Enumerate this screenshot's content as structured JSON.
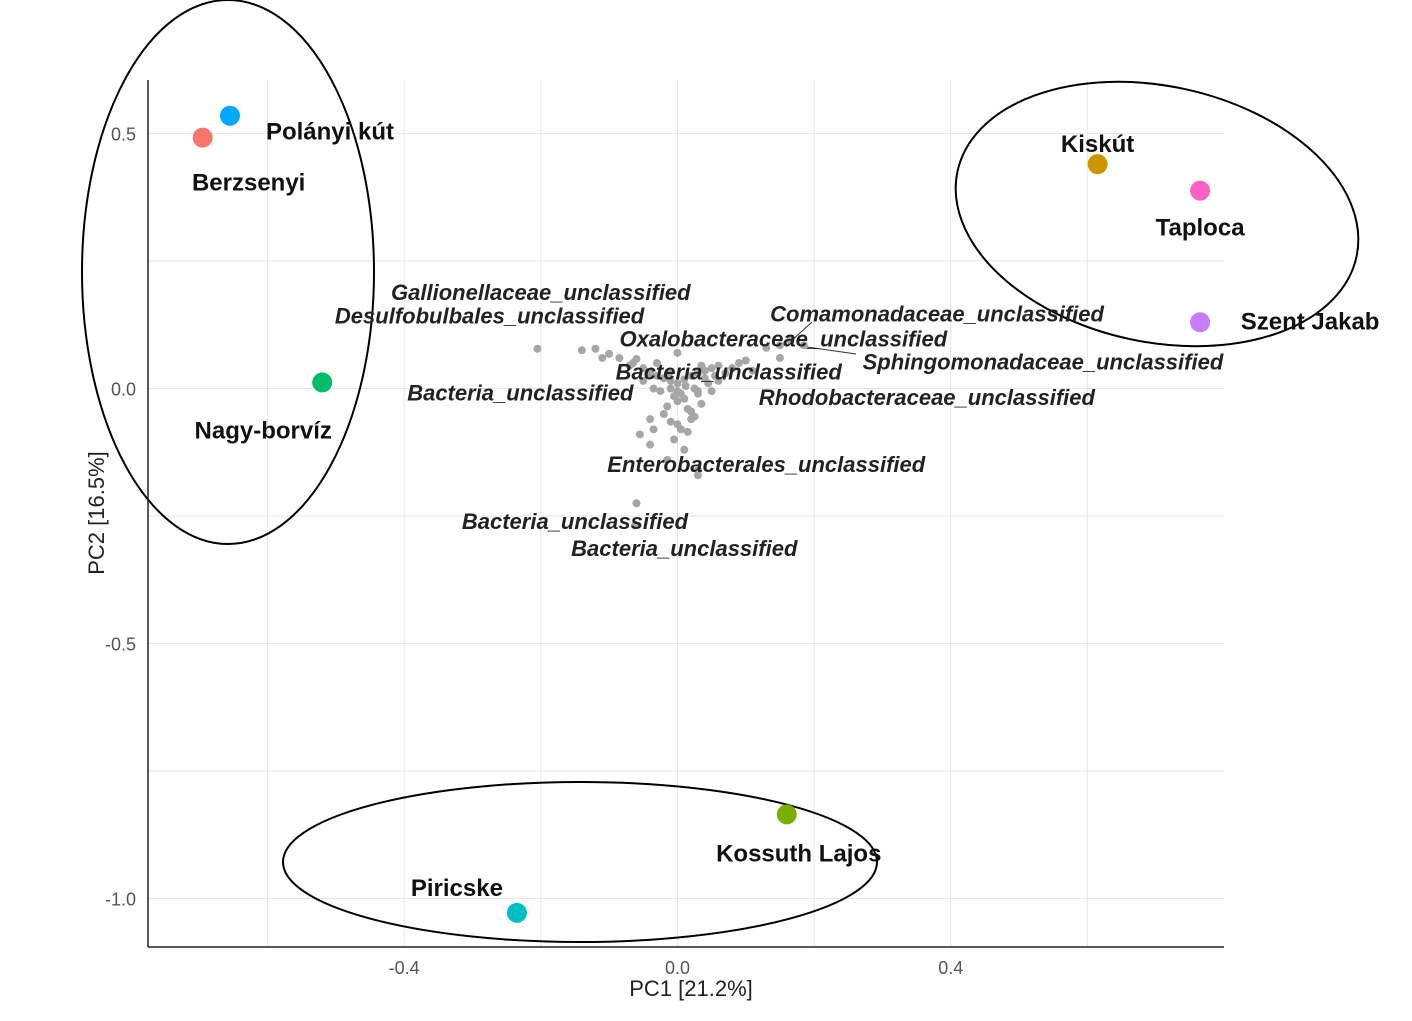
{
  "chart_data": {
    "type": "scatter",
    "title": "",
    "xlabel": "PC1 [21.2%]",
    "ylabel": "PC2 [16.5%]",
    "xlim": [
      -0.775,
      0.8
    ],
    "ylim": [
      -1.095,
      0.605
    ],
    "x_ticks": [
      {
        "value": -0.4,
        "label": "-0.4"
      },
      {
        "value": 0.0,
        "label": "0.0"
      },
      {
        "value": 0.4,
        "label": "0.4"
      }
    ],
    "y_ticks": [
      {
        "value": 0.5,
        "label": "0.5"
      },
      {
        "value": 0.0,
        "label": "0.0"
      },
      {
        "value": -0.5,
        "label": "-0.5"
      },
      {
        "value": -1.0,
        "label": "-1.0"
      }
    ],
    "x_minor_grid": [
      -0.6,
      -0.2,
      0.2,
      0.6
    ],
    "y_minor_grid": [
      0.25,
      -0.25,
      -0.75
    ],
    "grid": true,
    "sites": [
      {
        "name": "Polányi kút",
        "x": -0.655,
        "y": 0.535,
        "color": "#00a9ff"
      },
      {
        "name": "Berzsenyi",
        "x": -0.695,
        "y": 0.492,
        "color": "#f8766d"
      },
      {
        "name": "Nagy-borvíz",
        "x": -0.52,
        "y": 0.012,
        "color": "#00be67"
      },
      {
        "name": "Kiskút",
        "x": 0.615,
        "y": 0.44,
        "color": "#cd9600"
      },
      {
        "name": "Taploca",
        "x": 0.765,
        "y": 0.388,
        "color": "#ff61c3"
      },
      {
        "name": "Szent Jakab",
        "x": 0.765,
        "y": 0.13,
        "color": "#c77cff"
      },
      {
        "name": "Kossuth Lajos",
        "x": 0.16,
        "y": -0.835,
        "color": "#7cae00"
      },
      {
        "name": "Piricske",
        "x": -0.235,
        "y": -1.028,
        "color": "#00bfc4"
      }
    ],
    "taxa_points": [
      [
        -0.205,
        0.078
      ],
      [
        -0.14,
        0.075
      ],
      [
        -0.12,
        0.078
      ],
      [
        -0.1,
        0.068
      ],
      [
        -0.06,
        0.058
      ],
      [
        -0.07,
        0.045
      ],
      [
        -0.05,
        0.04
      ],
      [
        -0.04,
        0.03
      ],
      [
        -0.03,
        0.025
      ],
      [
        -0.02,
        0.02
      ],
      [
        -0.01,
        0.015
      ],
      [
        0.0,
        0.01
      ],
      [
        0.01,
        0.018
      ],
      [
        0.02,
        0.025
      ],
      [
        0.03,
        0.03
      ],
      [
        0.04,
        0.035
      ],
      [
        0.05,
        0.04
      ],
      [
        0.06,
        0.045
      ],
      [
        0.08,
        0.04
      ],
      [
        0.1,
        0.055
      ],
      [
        0.13,
        0.08
      ],
      [
        0.15,
        0.085
      ],
      [
        0.165,
        0.095
      ],
      [
        0.185,
        0.085
      ],
      [
        0.15,
        0.06
      ],
      [
        -0.01,
        0.0
      ],
      [
        0.0,
        -0.005
      ],
      [
        0.005,
        -0.01
      ],
      [
        -0.005,
        -0.015
      ],
      [
        0.01,
        -0.02
      ],
      [
        0.0,
        -0.025
      ],
      [
        -0.015,
        -0.035
      ],
      [
        0.015,
        -0.04
      ],
      [
        0.02,
        -0.045
      ],
      [
        0.025,
        -0.055
      ],
      [
        -0.02,
        -0.05
      ],
      [
        -0.01,
        -0.065
      ],
      [
        0.0,
        -0.07
      ],
      [
        0.02,
        -0.06
      ],
      [
        -0.04,
        -0.06
      ],
      [
        -0.035,
        -0.08
      ],
      [
        0.005,
        -0.08
      ],
      [
        -0.005,
        -0.1
      ],
      [
        0.01,
        -0.12
      ],
      [
        -0.04,
        -0.11
      ],
      [
        -0.015,
        -0.14
      ],
      [
        0.015,
        -0.085
      ],
      [
        -0.065,
        0.05
      ],
      [
        0.04,
        0.02
      ],
      [
        0.055,
        0.025
      ],
      [
        0.07,
        0.03
      ],
      [
        -0.035,
        0.0
      ],
      [
        0.03,
        -0.01
      ],
      [
        0.035,
        -0.03
      ],
      [
        0.03,
        -0.005
      ],
      [
        -0.025,
        -0.005
      ],
      [
        0.045,
        0.01
      ],
      [
        -0.03,
        0.05
      ],
      [
        0.025,
        0.0
      ],
      [
        0.035,
        0.045
      ],
      [
        -0.012,
        0.03
      ],
      [
        0.012,
        0.005
      ],
      [
        -0.05,
        0.015
      ],
      [
        0.05,
        -0.005
      ],
      [
        0.06,
        0.015
      ],
      [
        0.09,
        0.05
      ],
      [
        0.11,
        0.035
      ],
      [
        -0.085,
        0.06
      ],
      [
        -0.055,
        -0.09
      ],
      [
        -0.06,
        -0.225
      ],
      [
        -0.062,
        -0.268
      ],
      [
        0.03,
        -0.16
      ],
      [
        0.03,
        -0.17
      ],
      [
        0.0,
        0.07
      ],
      [
        -0.11,
        0.06
      ]
    ],
    "taxa_labels": [
      {
        "text": "Gallionellaceae_unclassified",
        "x": -0.2,
        "y": 0.189
      },
      {
        "text": "Desulfobulbales_unclassified",
        "x": -0.275,
        "y": 0.143
      },
      {
        "text": "Comamonadaceae_unclassified",
        "x": 0.38,
        "y": 0.147
      },
      {
        "text": "Oxalobacteraceae_unclassified",
        "x": 0.155,
        "y": 0.098
      },
      {
        "text": "Bacteria_unclassified",
        "x": 0.075,
        "y": 0.033
      },
      {
        "text": "Sphingomonadaceae_unclassified",
        "x": 0.535,
        "y": 0.053
      },
      {
        "text": "Bacteria_unclassified",
        "x": -0.23,
        "y": -0.008
      },
      {
        "text": "Rhodobacteraceae_unclassified",
        "x": 0.365,
        "y": -0.017
      },
      {
        "text": "Enterobacterales_unclassified",
        "x": 0.13,
        "y": -0.148
      },
      {
        "text": "Bacteria_unclassified",
        "x": -0.15,
        "y": -0.26
      },
      {
        "text": "Bacteria_unclassified",
        "x": 0.01,
        "y": -0.313
      }
    ],
    "groups": [
      {
        "members": [
          "Polányi kút",
          "Berzsenyi",
          "Nagy-borvíz"
        ]
      },
      {
        "members": [
          "Kiskút",
          "Taploca",
          "Szent Jakab"
        ]
      },
      {
        "members": [
          "Kossuth Lajos",
          "Piricske"
        ]
      }
    ]
  }
}
